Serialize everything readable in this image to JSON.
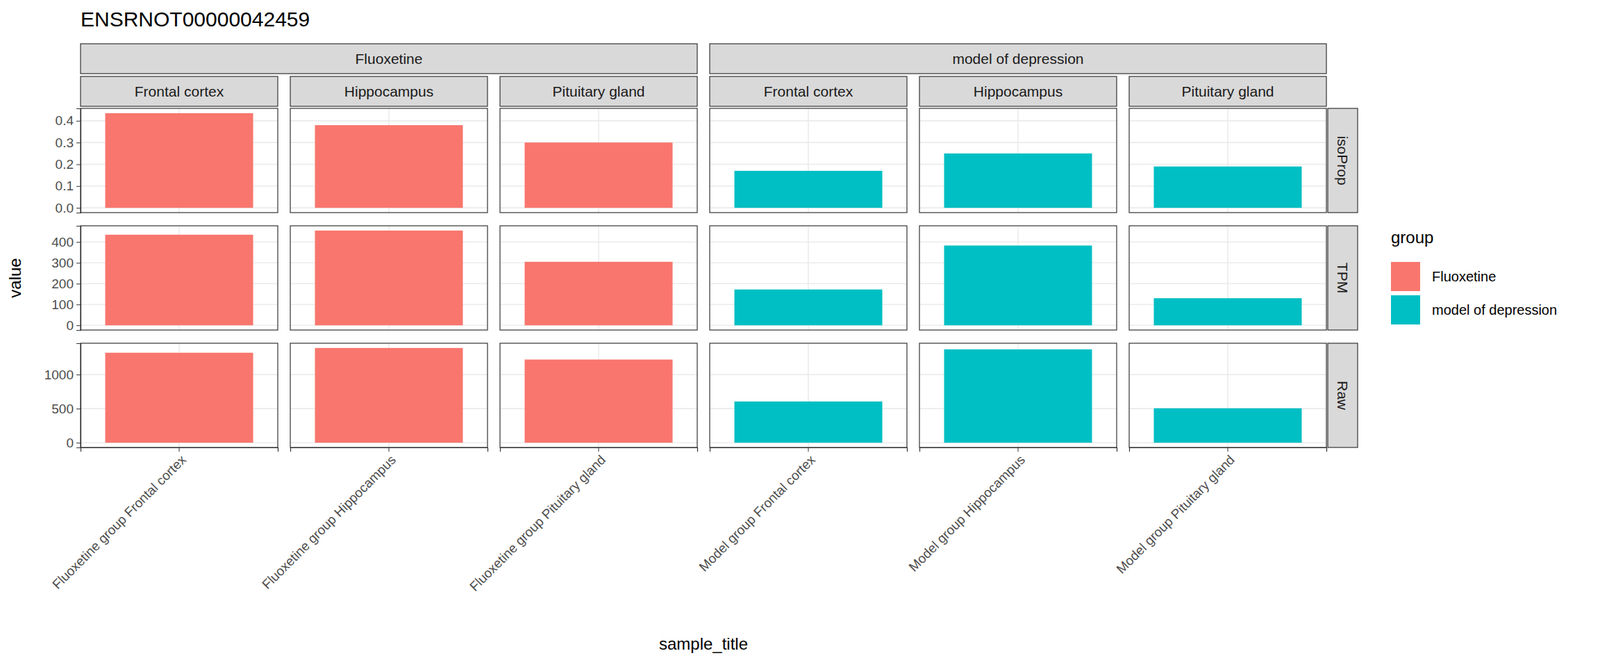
{
  "chart_data": {
    "type": "bar",
    "title": "ENSRNOT00000042459",
    "x_label": "sample_title",
    "y_label": "value",
    "legend_title": "group",
    "legend": "right",
    "grid": true,
    "column_groups": [
      {
        "name": "Fluoxetine",
        "color": "#F8766D",
        "panels": [
          "Frontal cortex",
          "Hippocampus",
          "Pituitary gland"
        ],
        "categories": [
          "Fluoxetine group Frontal cortex",
          "Fluoxetine group Hippocampus",
          "Fluoxetine group Pituitary gland"
        ]
      },
      {
        "name": "model of depression",
        "color": "#00BFC4",
        "panels": [
          "Frontal cortex",
          "Hippocampus",
          "Pituitary gland"
        ],
        "categories": [
          "Model group Frontal cortex",
          "Model group Hippocampus",
          "Model group Pituitary gland"
        ]
      }
    ],
    "rows": [
      {
        "name": "isoProp",
        "ylim": [
          -0.022,
          0.457
        ],
        "yticks": [
          {
            "value": 0,
            "label": "0.0"
          },
          0.1,
          0.2,
          0.3,
          0.4
        ],
        "series": [
          {
            "name": "Fluoxetine",
            "values": [
              0.435,
              0.38,
              0.3
            ]
          },
          {
            "name": "model of depression",
            "values": [
              0.17,
              0.25,
              0.19
            ]
          }
        ]
      },
      {
        "name": "TPM",
        "ylim": [
          -22.75,
          477.75
        ],
        "yticks": [
          0,
          100,
          200,
          300,
          400
        ],
        "series": [
          {
            "name": "Fluoxetine",
            "values": [
              435,
              455,
              305
            ]
          },
          {
            "name": "model of depression",
            "values": [
              172,
              383,
              130
            ]
          }
        ]
      },
      {
        "name": "Raw",
        "ylim": [
          -69.5,
          1459.5
        ],
        "yticks": [
          0,
          500,
          1000
        ],
        "series": [
          {
            "name": "Fluoxetine",
            "values": [
              1320,
              1390,
              1220
            ]
          },
          {
            "name": "model of depression",
            "values": [
              605,
              1370,
              505
            ]
          }
        ]
      }
    ]
  }
}
